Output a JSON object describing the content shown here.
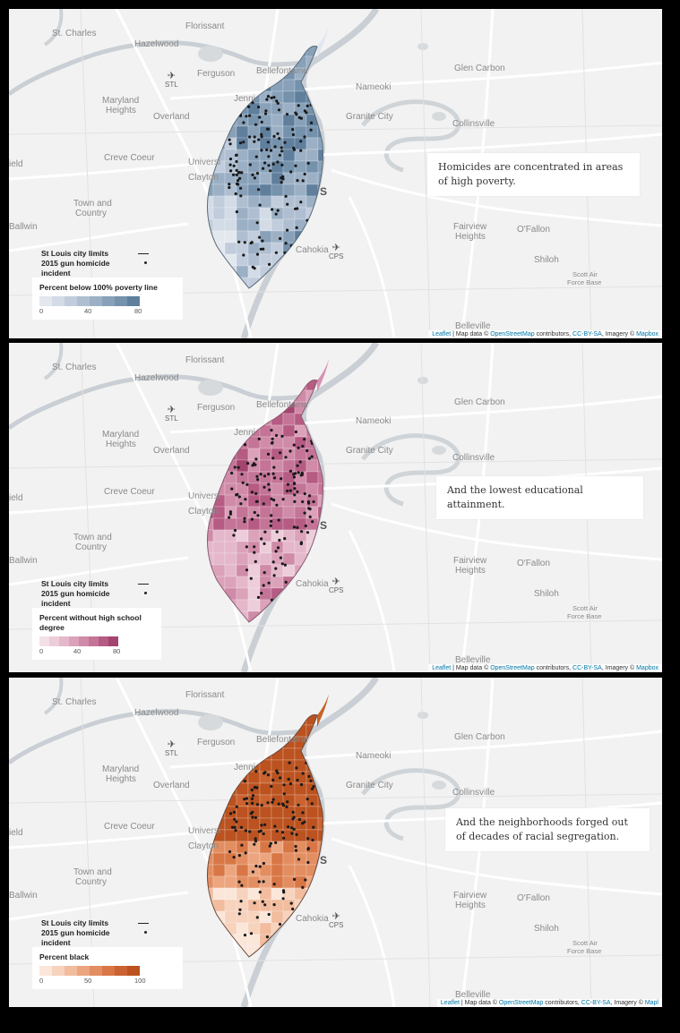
{
  "places": {
    "st_charles": "St. Charles",
    "hazelwood": "Hazelwood",
    "florissant": "Florissant",
    "ferguson": "Ferguson",
    "bellefontaine": "Bellefontaine",
    "nameoki": "Nameoki",
    "glen_carbon": "Glen Carbon",
    "maryland_heights_1": "Maryland",
    "maryland_heights_2": "Heights",
    "overland": "Overland",
    "jennings": "Jenni",
    "granite_city": "Granite City",
    "collinsville": "Collinsville",
    "creve_coeur": "Creve Coeur",
    "university": "Universi",
    "clayton": "Clayton",
    "town_and_country_1": "Town and",
    "town_and_country_2": "Country",
    "ballwin": "Ballwin",
    "ield": "ield",
    "fairview_1": "Fairview",
    "fairview_2": "Heights",
    "ofallon": "O'Fallon",
    "cahokia": "Cahokia",
    "shiloh": "Shiloh",
    "scott_1": "Scott Air",
    "scott_2": "Force Base",
    "belleville": "Belleville",
    "s_marker": "S",
    "stl": "STL",
    "cps": "CPS"
  },
  "legend_common": {
    "city_limits": "St Louis city limits",
    "homicide_1": "2015 gun homicide",
    "homicide_2": "incident"
  },
  "panels": [
    {
      "caption": "Homicides are concentrated in areas of high poverty.",
      "legend_title": "Percent below 100% poverty line",
      "ticks": [
        "0",
        "40",
        "80"
      ],
      "ramp": [
        "#e3e8ef",
        "#d2dbe6",
        "#c1cddc",
        "#afbfd1",
        "#9cb0c5",
        "#88a1b9",
        "#7592ad",
        "#5f7f9d"
      ],
      "attribution": {
        "leaflet": "Leaflet",
        "sep": "| Map data ©",
        "osm": "OpenStreetMap",
        "contrib": "contributors,",
        "cc": "CC-BY-SA",
        "imagery": ", Imagery ©",
        "mapbox": "Mapbox"
      }
    },
    {
      "caption": "And the lowest educational attainment.",
      "legend_title": "Percent without high school degree",
      "ticks": [
        "0",
        "40",
        "80"
      ],
      "ramp": [
        "#f4e1e8",
        "#edcdd9",
        "#e4b8ca",
        "#dba2b9",
        "#d08ba8",
        "#c47497",
        "#b65b84",
        "#a3456f"
      ],
      "attribution": {
        "leaflet": "Leaflet",
        "sep": "| Map data ©",
        "osm": "OpenStreetMap",
        "contrib": "contributors,",
        "cc": "CC-BY-SA",
        "imagery": ", Imagery ©",
        "mapbox": "Mapbox"
      }
    },
    {
      "caption": "And the neighborhoods forged out of decades of racial segregation.",
      "legend_title": "Percent black",
      "ticks": [
        "0",
        "50",
        "100"
      ],
      "ramp": [
        "#fbe6da",
        "#f7d2bd",
        "#f2bc9e",
        "#eca57f",
        "#e38e61",
        "#d87745",
        "#cb6330",
        "#bb521f"
      ],
      "attribution": {
        "leaflet": "Leaflet",
        "sep": "| Map data ©",
        "osm": "OpenStreetMap",
        "contrib": "contributors,",
        "cc": "CC-BY-SA",
        "imagery": ", Imagery ©",
        "mapbox": "Mapl"
      }
    }
  ]
}
